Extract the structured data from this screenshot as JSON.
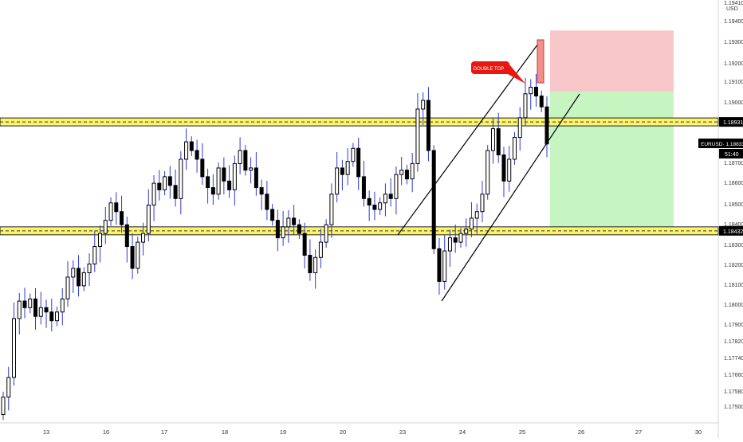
{
  "chart_data": {
    "type": "candlestick",
    "symbol_tag": "EURUSD·",
    "current_price": "1.18833",
    "countdown": "51:40",
    "annotation": "DOUBLE TOP",
    "y_axis_unit": "USD",
    "y_ticks": [
      "1.19410",
      "1.19400",
      "1.19300",
      "1.19200",
      "1.19100",
      "1.19000",
      "1.18900",
      "1.18800",
      "1.18700",
      "1.18600",
      "1.18500",
      "1.18400",
      "1.18300",
      "1.18200",
      "1.18100",
      "1.18000",
      "1.17900",
      "1.17820",
      "1.17740",
      "1.17660",
      "1.17580",
      "1.17500"
    ],
    "x_ticks": [
      "13",
      "16",
      "17",
      "18",
      "19",
      "20",
      "23",
      "24",
      "25",
      "26",
      "27",
      "30"
    ],
    "levels": [
      {
        "label": "1.18931",
        "value": 1.18931
      },
      {
        "label": "1.18432",
        "value": 1.18432
      }
    ],
    "trade_box": {
      "entry": 1.1907,
      "stop": 1.1935,
      "target": 1.1845
    },
    "closes": [
      1.1767,
      1.1776,
      1.1803,
      1.1811,
      1.1808,
      1.1812,
      1.1804,
      1.1808,
      1.1806,
      1.1802,
      1.1806,
      1.1812,
      1.1822,
      1.1826,
      1.1818,
      1.1824,
      1.1828,
      1.1836,
      1.1842,
      1.1848,
      1.1856,
      1.1852,
      1.1846,
      1.1836,
      1.1826,
      1.1838,
      1.1842,
      1.1855,
      1.1865,
      1.1862,
      1.1868,
      1.1864,
      1.1858,
      1.1876,
      1.1884,
      1.188,
      1.1876,
      1.1868,
      1.1863,
      1.186,
      1.1872,
      1.1866,
      1.1862,
      1.1874,
      1.188,
      1.1871,
      1.1872,
      1.1863,
      1.186,
      1.1853,
      1.1848,
      1.184,
      1.1845,
      1.1849,
      1.1846,
      1.1842,
      1.1832,
      1.1824,
      1.1831,
      1.1838,
      1.1846,
      1.186,
      1.1872,
      1.1869,
      1.1875,
      1.1881,
      1.1868,
      1.1858,
      1.1855,
      1.1853,
      1.1856,
      1.186,
      1.1858,
      1.1869,
      1.1871,
      1.1867,
      1.1874,
      1.1899,
      1.1903,
      1.188,
      1.1835,
      1.182,
      1.1834,
      1.184,
      1.1838,
      1.1842,
      1.1844,
      1.1849,
      1.1852,
      1.186,
      1.188,
      1.189,
      1.1878,
      1.1866,
      1.1876,
      1.1886,
      1.1895,
      1.1906,
      1.1909,
      1.1905,
      1.19,
      1.1883
    ]
  }
}
